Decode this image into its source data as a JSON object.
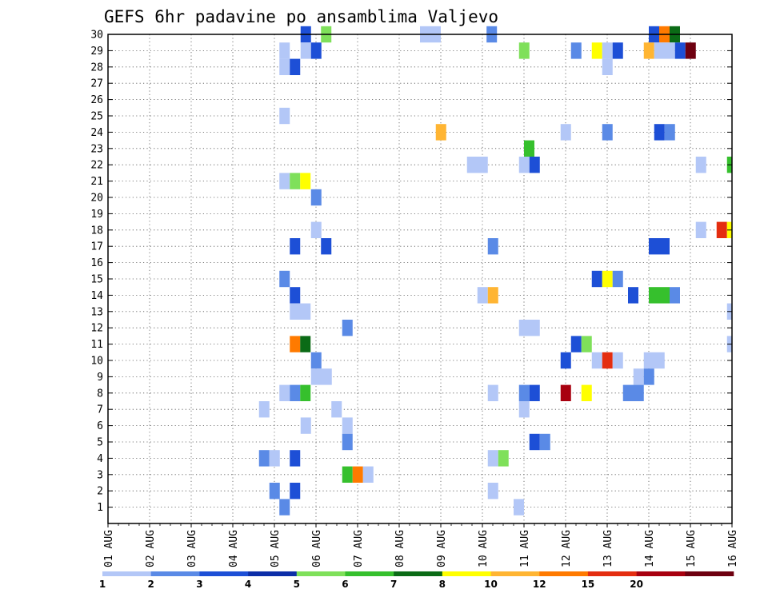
{
  "chart_data": {
    "type": "heatmap",
    "title": "GEFS 6hr padavine po ansamblima Valjevo",
    "y_ticks": [
      "30",
      "29",
      "28",
      "27",
      "26",
      "25",
      "24",
      "23",
      "22",
      "21",
      "20",
      "19",
      "18",
      "17",
      "16",
      "15",
      "14",
      "13",
      "12",
      "11",
      "10",
      "9",
      "8",
      "7",
      "6",
      "5",
      "4",
      "3",
      "2",
      "1"
    ],
    "x_ticks": [
      "01 AUG",
      "02 AUG",
      "03 AUG",
      "04 AUG",
      "05 AUG",
      "06 AUG",
      "07 AUG",
      "08 AUG",
      "09 AUG",
      "10 AUG",
      "11 AUG",
      "12 AUG",
      "13 AUG",
      "14 AUG",
      "15 AUG",
      "16 AUG"
    ],
    "x_range_days": [
      1,
      16
    ],
    "y_range": [
      0,
      30
    ],
    "colorbar": {
      "labels": [
        "1",
        "2",
        "3",
        "4",
        "5",
        "6",
        "7",
        "8",
        "10",
        "12",
        "15",
        "20"
      ],
      "colors": [
        "#b3c7f7",
        "#5a8ae6",
        "#1d4fd6",
        "#0c2ea8",
        "#7fe05a",
        "#36c02d",
        "#0b6b16",
        "#ffff00",
        "#ffb533",
        "#ff7a00",
        "#e42d10",
        "#a8000f",
        "#6e0010"
      ]
    },
    "cells": [
      {
        "m": 30,
        "d": 5.63,
        "w": 0.25,
        "c": "#1d4fd6"
      },
      {
        "m": 30,
        "d": 6.12,
        "w": 0.25,
        "c": "#7fe05a"
      },
      {
        "m": 30,
        "d": 8.5,
        "w": 0.5,
        "c": "#b3c7f7"
      },
      {
        "m": 30,
        "d": 10.1,
        "w": 0.25,
        "c": "#5a8ae6"
      },
      {
        "m": 30,
        "d": 14.0,
        "w": 0.25,
        "c": "#1d4fd6"
      },
      {
        "m": 30,
        "d": 14.25,
        "w": 0.25,
        "c": "#ff7a00"
      },
      {
        "m": 30,
        "d": 14.5,
        "w": 0.25,
        "c": "#0b6b16"
      },
      {
        "m": 29,
        "d": 5.12,
        "w": 0.25,
        "c": "#b3c7f7"
      },
      {
        "m": 29,
        "d": 5.63,
        "w": 0.25,
        "c": "#b3c7f7"
      },
      {
        "m": 29,
        "d": 5.88,
        "w": 0.25,
        "c": "#1d4fd6"
      },
      {
        "m": 29,
        "d": 10.88,
        "w": 0.25,
        "c": "#7fe05a"
      },
      {
        "m": 29,
        "d": 12.13,
        "w": 0.25,
        "c": "#5a8ae6"
      },
      {
        "m": 29,
        "d": 12.63,
        "w": 0.25,
        "c": "#ffff00"
      },
      {
        "m": 29,
        "d": 12.88,
        "w": 0.25,
        "c": "#b3c7f7"
      },
      {
        "m": 29,
        "d": 13.13,
        "w": 0.25,
        "c": "#1d4fd6"
      },
      {
        "m": 29,
        "d": 13.88,
        "w": 0.25,
        "c": "#ffb533"
      },
      {
        "m": 29,
        "d": 14.13,
        "w": 0.5,
        "c": "#b3c7f7"
      },
      {
        "m": 29,
        "d": 14.63,
        "w": 0.25,
        "c": "#1d4fd6"
      },
      {
        "m": 29,
        "d": 14.88,
        "w": 0.25,
        "c": "#6e0010"
      },
      {
        "m": 28,
        "d": 5.12,
        "w": 0.25,
        "c": "#b3c7f7"
      },
      {
        "m": 28,
        "d": 5.37,
        "w": 0.25,
        "c": "#1d4fd6"
      },
      {
        "m": 28,
        "d": 12.88,
        "w": 0.25,
        "c": "#b3c7f7"
      },
      {
        "m": 25,
        "d": 5.12,
        "w": 0.25,
        "c": "#b3c7f7"
      },
      {
        "m": 24,
        "d": 8.88,
        "w": 0.25,
        "c": "#ffb533"
      },
      {
        "m": 24,
        "d": 11.88,
        "w": 0.25,
        "c": "#b3c7f7"
      },
      {
        "m": 24,
        "d": 12.88,
        "w": 0.25,
        "c": "#5a8ae6"
      },
      {
        "m": 24,
        "d": 14.13,
        "w": 0.25,
        "c": "#1d4fd6"
      },
      {
        "m": 24,
        "d": 14.38,
        "w": 0.25,
        "c": "#5a8ae6"
      },
      {
        "m": 23,
        "d": 11.0,
        "w": 0.25,
        "c": "#36c02d"
      },
      {
        "m": 22,
        "d": 9.63,
        "w": 0.5,
        "c": "#b3c7f7"
      },
      {
        "m": 22,
        "d": 10.88,
        "w": 0.25,
        "c": "#b3c7f7"
      },
      {
        "m": 22,
        "d": 11.13,
        "w": 0.25,
        "c": "#1d4fd6"
      },
      {
        "m": 22,
        "d": 15.13,
        "w": 0.25,
        "c": "#b3c7f7"
      },
      {
        "m": 22,
        "d": 15.88,
        "w": 0.12,
        "c": "#36c02d"
      },
      {
        "m": 21,
        "d": 5.12,
        "w": 0.25,
        "c": "#b3c7f7"
      },
      {
        "m": 21,
        "d": 5.37,
        "w": 0.25,
        "c": "#7fe05a"
      },
      {
        "m": 21,
        "d": 5.62,
        "w": 0.25,
        "c": "#ffff00"
      },
      {
        "m": 20,
        "d": 5.88,
        "w": 0.25,
        "c": "#5a8ae6"
      },
      {
        "m": 18,
        "d": 5.88,
        "w": 0.25,
        "c": "#b3c7f7"
      },
      {
        "m": 18,
        "d": 15.13,
        "w": 0.25,
        "c": "#b3c7f7"
      },
      {
        "m": 18,
        "d": 15.63,
        "w": 0.25,
        "c": "#e42d10"
      },
      {
        "m": 18,
        "d": 15.88,
        "w": 0.12,
        "c": "#ffff00"
      },
      {
        "m": 17,
        "d": 5.37,
        "w": 0.25,
        "c": "#1d4fd6"
      },
      {
        "m": 17,
        "d": 6.12,
        "w": 0.25,
        "c": "#1d4fd6"
      },
      {
        "m": 17,
        "d": 10.13,
        "w": 0.25,
        "c": "#5a8ae6"
      },
      {
        "m": 17,
        "d": 14.0,
        "w": 0.5,
        "c": "#1d4fd6"
      },
      {
        "m": 15,
        "d": 5.12,
        "w": 0.25,
        "c": "#5a8ae6"
      },
      {
        "m": 15,
        "d": 12.63,
        "w": 0.25,
        "c": "#1d4fd6"
      },
      {
        "m": 15,
        "d": 12.88,
        "w": 0.25,
        "c": "#ffff00"
      },
      {
        "m": 15,
        "d": 13.13,
        "w": 0.25,
        "c": "#5a8ae6"
      },
      {
        "m": 14,
        "d": 5.37,
        "w": 0.25,
        "c": "#1d4fd6"
      },
      {
        "m": 14,
        "d": 9.88,
        "w": 0.25,
        "c": "#b3c7f7"
      },
      {
        "m": 14,
        "d": 10.13,
        "w": 0.25,
        "c": "#ffb533"
      },
      {
        "m": 14,
        "d": 13.5,
        "w": 0.25,
        "c": "#1d4fd6"
      },
      {
        "m": 14,
        "d": 14.0,
        "w": 0.5,
        "c": "#36c02d"
      },
      {
        "m": 14,
        "d": 14.5,
        "w": 0.25,
        "c": "#5a8ae6"
      },
      {
        "m": 13,
        "d": 5.37,
        "w": 0.5,
        "c": "#b3c7f7"
      },
      {
        "m": 13,
        "d": 15.88,
        "w": 0.12,
        "c": "#b3c7f7"
      },
      {
        "m": 12,
        "d": 6.63,
        "w": 0.25,
        "c": "#5a8ae6"
      },
      {
        "m": 12,
        "d": 10.88,
        "w": 0.5,
        "c": "#b3c7f7"
      },
      {
        "m": 11,
        "d": 5.37,
        "w": 0.25,
        "c": "#ff7a00"
      },
      {
        "m": 11,
        "d": 5.62,
        "w": 0.25,
        "c": "#0b6b16"
      },
      {
        "m": 11,
        "d": 12.13,
        "w": 0.25,
        "c": "#1d4fd6"
      },
      {
        "m": 11,
        "d": 12.38,
        "w": 0.25,
        "c": "#7fe05a"
      },
      {
        "m": 11,
        "d": 15.88,
        "w": 0.12,
        "c": "#b3c7f7"
      },
      {
        "m": 10,
        "d": 5.88,
        "w": 0.25,
        "c": "#5a8ae6"
      },
      {
        "m": 10,
        "d": 11.88,
        "w": 0.25,
        "c": "#1d4fd6"
      },
      {
        "m": 10,
        "d": 12.63,
        "w": 0.25,
        "c": "#b3c7f7"
      },
      {
        "m": 10,
        "d": 12.88,
        "w": 0.25,
        "c": "#e42d10"
      },
      {
        "m": 10,
        "d": 13.13,
        "w": 0.25,
        "c": "#b3c7f7"
      },
      {
        "m": 10,
        "d": 13.88,
        "w": 0.5,
        "c": "#b3c7f7"
      },
      {
        "m": 9,
        "d": 5.88,
        "w": 0.5,
        "c": "#b3c7f7"
      },
      {
        "m": 9,
        "d": 13.63,
        "w": 0.25,
        "c": "#b3c7f7"
      },
      {
        "m": 9,
        "d": 13.88,
        "w": 0.25,
        "c": "#5a8ae6"
      },
      {
        "m": 8,
        "d": 5.12,
        "w": 0.25,
        "c": "#b3c7f7"
      },
      {
        "m": 8,
        "d": 5.37,
        "w": 0.25,
        "c": "#5a8ae6"
      },
      {
        "m": 8,
        "d": 5.62,
        "w": 0.25,
        "c": "#36c02d"
      },
      {
        "m": 8,
        "d": 10.13,
        "w": 0.25,
        "c": "#b3c7f7"
      },
      {
        "m": 8,
        "d": 10.88,
        "w": 0.25,
        "c": "#5a8ae6"
      },
      {
        "m": 8,
        "d": 11.13,
        "w": 0.25,
        "c": "#1d4fd6"
      },
      {
        "m": 8,
        "d": 11.88,
        "w": 0.25,
        "c": "#a8000f"
      },
      {
        "m": 8,
        "d": 12.38,
        "w": 0.25,
        "c": "#ffff00"
      },
      {
        "m": 8,
        "d": 13.38,
        "w": 0.5,
        "c": "#5a8ae6"
      },
      {
        "m": 7,
        "d": 4.63,
        "w": 0.25,
        "c": "#b3c7f7"
      },
      {
        "m": 7,
        "d": 6.37,
        "w": 0.25,
        "c": "#b3c7f7"
      },
      {
        "m": 7,
        "d": 10.88,
        "w": 0.25,
        "c": "#b3c7f7"
      },
      {
        "m": 6,
        "d": 5.63,
        "w": 0.25,
        "c": "#b3c7f7"
      },
      {
        "m": 6,
        "d": 6.63,
        "w": 0.25,
        "c": "#b3c7f7"
      },
      {
        "m": 5,
        "d": 6.63,
        "w": 0.25,
        "c": "#5a8ae6"
      },
      {
        "m": 5,
        "d": 11.13,
        "w": 0.25,
        "c": "#1d4fd6"
      },
      {
        "m": 5,
        "d": 11.38,
        "w": 0.25,
        "c": "#5a8ae6"
      },
      {
        "m": 4,
        "d": 4.63,
        "w": 0.25,
        "c": "#5a8ae6"
      },
      {
        "m": 4,
        "d": 4.88,
        "w": 0.25,
        "c": "#b3c7f7"
      },
      {
        "m": 4,
        "d": 5.37,
        "w": 0.25,
        "c": "#1d4fd6"
      },
      {
        "m": 4,
        "d": 10.13,
        "w": 0.25,
        "c": "#b3c7f7"
      },
      {
        "m": 4,
        "d": 10.38,
        "w": 0.25,
        "c": "#7fe05a"
      },
      {
        "m": 3,
        "d": 6.63,
        "w": 0.25,
        "c": "#36c02d"
      },
      {
        "m": 3,
        "d": 6.88,
        "w": 0.25,
        "c": "#ff7a00"
      },
      {
        "m": 3,
        "d": 7.13,
        "w": 0.25,
        "c": "#b3c7f7"
      },
      {
        "m": 2,
        "d": 4.88,
        "w": 0.25,
        "c": "#5a8ae6"
      },
      {
        "m": 2,
        "d": 5.37,
        "w": 0.25,
        "c": "#1d4fd6"
      },
      {
        "m": 2,
        "d": 10.13,
        "w": 0.25,
        "c": "#b3c7f7"
      },
      {
        "m": 1,
        "d": 5.12,
        "w": 0.25,
        "c": "#5a8ae6"
      },
      {
        "m": 1,
        "d": 10.75,
        "w": 0.25,
        "c": "#b3c7f7"
      }
    ]
  }
}
